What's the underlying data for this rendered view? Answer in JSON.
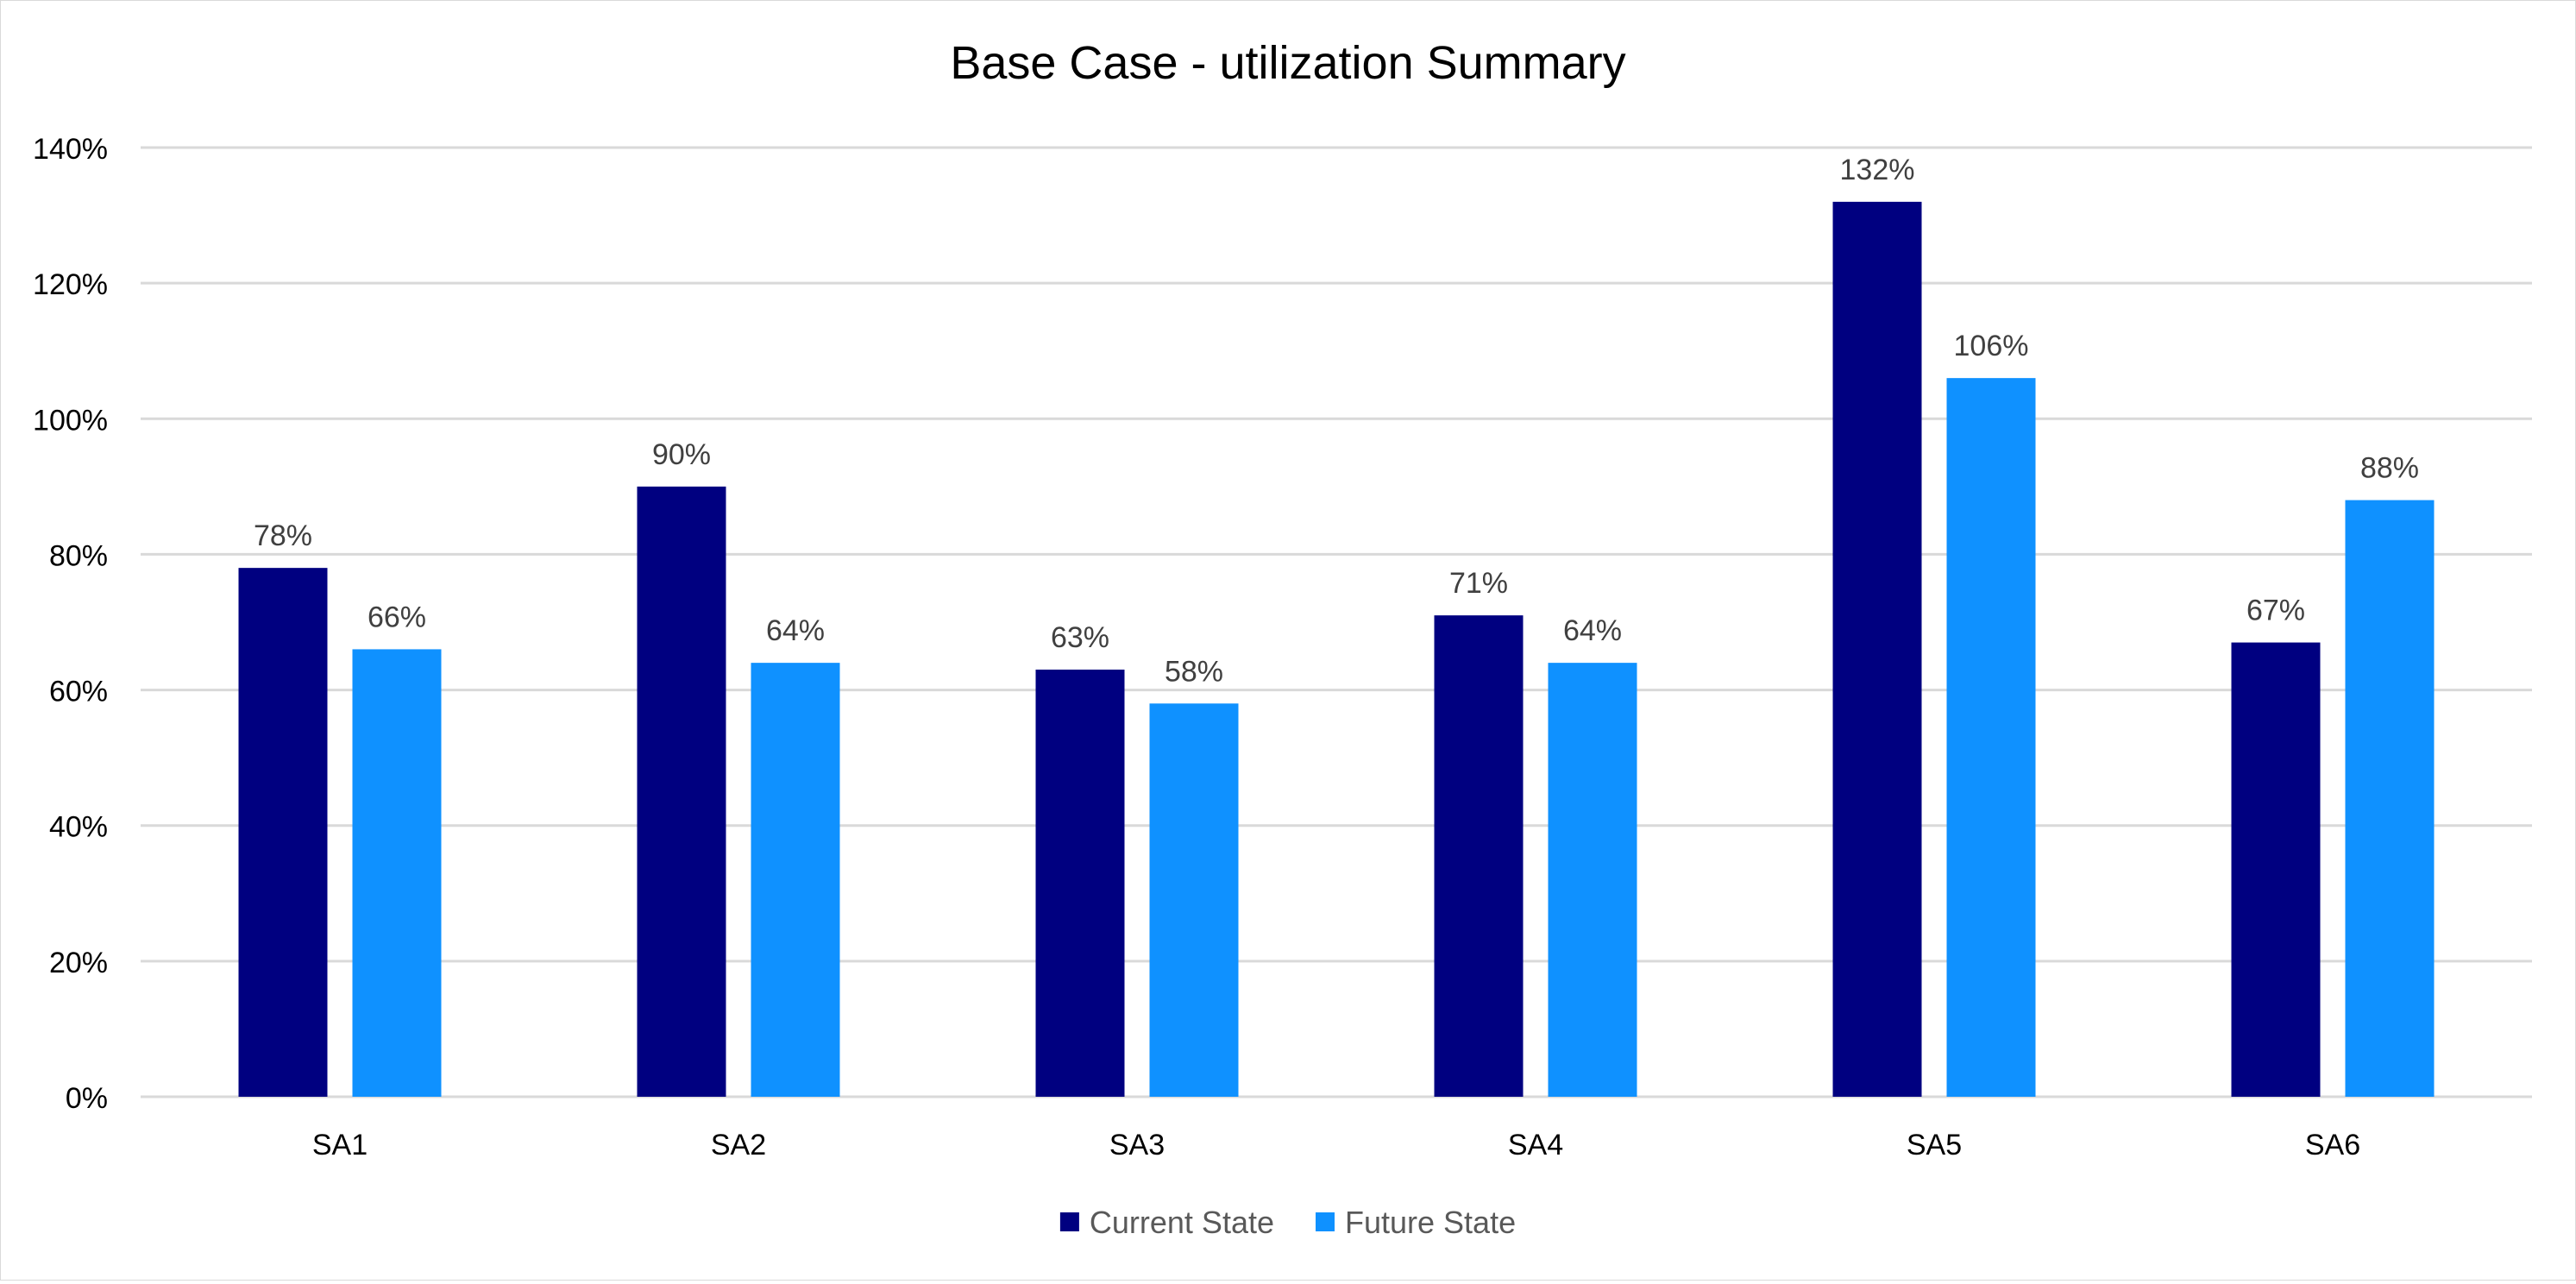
{
  "chart_data": {
    "type": "bar",
    "title": "Base Case - utilization Summary",
    "xlabel": "",
    "ylabel": "",
    "categories": [
      "SA1",
      "SA2",
      "SA3",
      "SA4",
      "SA5",
      "SA6"
    ],
    "series": [
      {
        "name": "Current State",
        "values": [
          78,
          90,
          63,
          71,
          132,
          67
        ],
        "color": "#000080"
      },
      {
        "name": "Future State",
        "values": [
          66,
          64,
          58,
          64,
          106,
          88
        ],
        "color": "#0F91FF"
      }
    ],
    "ylim": [
      0,
      140
    ],
    "yticks": [
      0,
      20,
      40,
      60,
      80,
      100,
      120,
      140
    ],
    "value_format": "percent",
    "grid": true,
    "legend_position": "bottom",
    "data_labels": true
  }
}
